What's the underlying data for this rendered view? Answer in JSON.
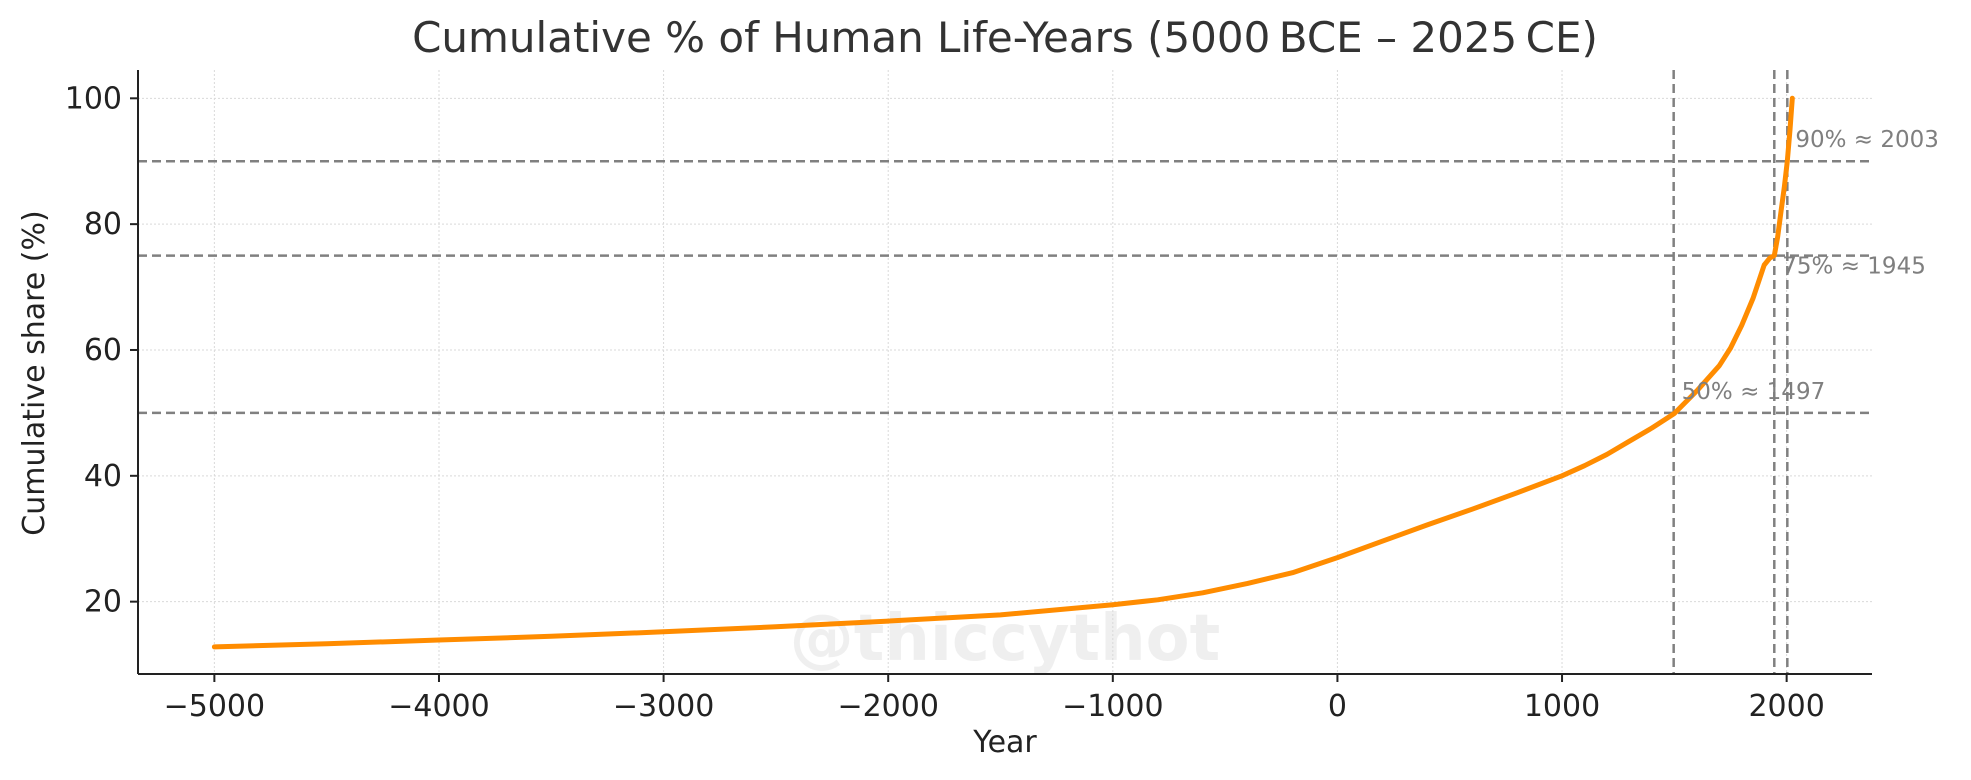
{
  "chart_data": {
    "type": "line",
    "title": "Cumulative % of Human Life-Years (5000 BCE – 2025 CE)",
    "xlabel": "Year",
    "ylabel": "Cumulative share (%)",
    "xlim": [
      -5340,
      2380
    ],
    "ylim": [
      8.5,
      104.5
    ],
    "xticks": [
      -5000,
      -4000,
      -3000,
      -2000,
      -1000,
      0,
      1000,
      2000
    ],
    "xtick_labels": [
      "−5000",
      "−4000",
      "−3000",
      "−2000",
      "−1000",
      "0",
      "1000",
      "2000"
    ],
    "yticks": [
      20,
      40,
      60,
      80,
      100
    ],
    "ytick_labels": [
      "20",
      "40",
      "60",
      "80",
      "100"
    ],
    "grid": true,
    "series": [
      {
        "color": "#ff8c00",
        "x": [
          -5000,
          -4500,
          -4000,
          -3500,
          -3000,
          -2500,
          -2000,
          -1500,
          -1000,
          -800,
          -600,
          -400,
          -200,
          0,
          200,
          400,
          600,
          800,
          1000,
          1100,
          1200,
          1300,
          1400,
          1500,
          1600,
          1700,
          1750,
          1800,
          1850,
          1900,
          1925,
          1945,
          1960,
          1975,
          1990,
          2003,
          2015,
          2025
        ],
        "y": [
          12.8,
          13.3,
          13.9,
          14.5,
          15.2,
          16.0,
          16.9,
          17.9,
          19.5,
          20.3,
          21.4,
          22.9,
          24.6,
          27.0,
          29.6,
          32.2,
          34.7,
          37.3,
          40.0,
          41.6,
          43.4,
          45.5,
          47.6,
          49.9,
          53.5,
          57.5,
          60.3,
          63.9,
          68.2,
          73.5,
          74.6,
          75.0,
          78.0,
          82.0,
          86.0,
          90.0,
          95.0,
          100.0
        ]
      }
    ],
    "reference_lines": [
      {
        "axis": "y",
        "value": 50,
        "label": "50% ≈ 1497"
      },
      {
        "axis": "y",
        "value": 75,
        "label": "75% ≈ 1945"
      },
      {
        "axis": "y",
        "value": 90,
        "label": "90% ≈ 2003"
      },
      {
        "axis": "x",
        "value": 1497
      },
      {
        "axis": "x",
        "value": 1945
      },
      {
        "axis": "x",
        "value": 2003
      }
    ],
    "watermark": "@thiccythot"
  }
}
